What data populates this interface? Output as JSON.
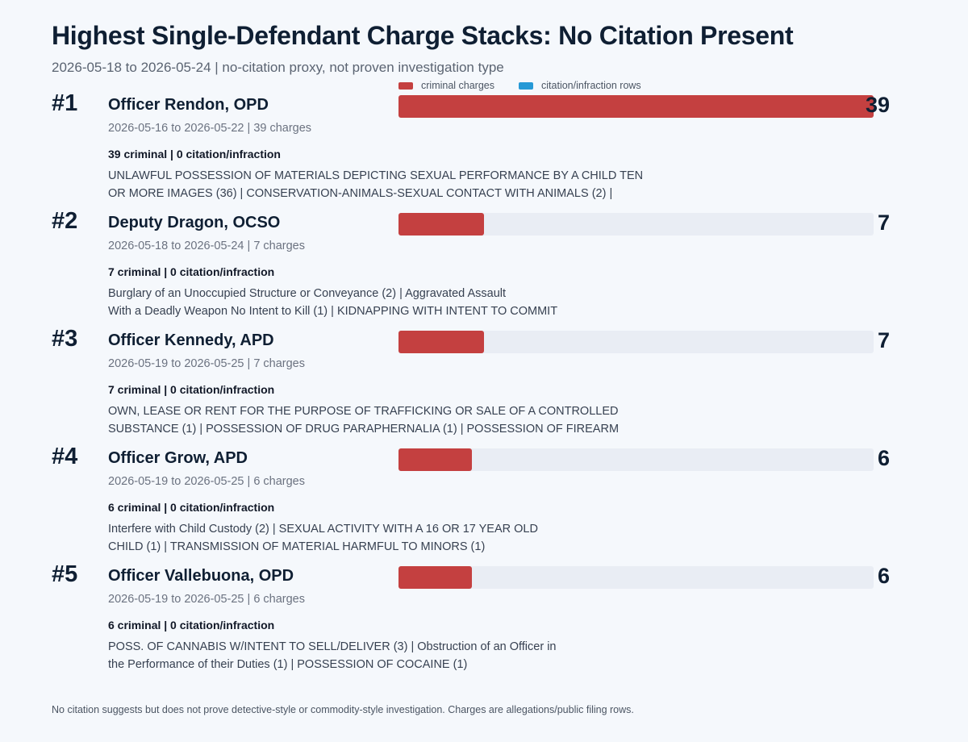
{
  "title": "Highest Single-Defendant Charge Stacks: No Citation Present",
  "subtitle": "2026-05-18 to 2026-05-24 | no-citation proxy, not proven investigation type",
  "legend": [
    {
      "label": "criminal charges",
      "color": "#c44040"
    },
    {
      "label": "citation/infraction rows",
      "color": "#2699d6"
    }
  ],
  "footnote": "No citation suggests but does not prove detective-style or commodity-style investigation. Charges are allegations/public filing rows.",
  "chart_data": {
    "type": "bar",
    "orientation": "horizontal",
    "stacked": true,
    "xlim": [
      0,
      39
    ],
    "categories": [
      "Officer Rendon, OPD",
      "Deputy Dragon, OCSO",
      "Officer Kennedy, APD",
      "Officer Grow, APD",
      "Officer Vallebuona, OPD"
    ],
    "series": [
      {
        "name": "criminal charges",
        "values": [
          39,
          7,
          7,
          6,
          6
        ]
      },
      {
        "name": "citation/infraction rows",
        "values": [
          0,
          0,
          0,
          0,
          0
        ]
      }
    ],
    "rows": [
      {
        "rank": "#1",
        "name": "Officer Rendon, OPD",
        "meta": "2026-05-16 to 2026-05-22 | 39 charges",
        "split": "39 criminal | 0 citation/infraction",
        "charges": [
          "UNLAWFUL POSSESSION OF MATERIALS DEPICTING SEXUAL PERFORMANCE BY A CHILD TEN",
          "OR MORE IMAGES (36) | CONSERVATION-ANIMALS-SEXUAL CONTACT WITH ANIMALS (2) |"
        ],
        "criminal": 39,
        "citation": 0,
        "total": "39"
      },
      {
        "rank": "#2",
        "name": "Deputy Dragon, OCSO",
        "meta": "2026-05-18 to 2026-05-24 | 7 charges",
        "split": "7 criminal | 0 citation/infraction",
        "charges": [
          "Burglary of an Unoccupied Structure or Conveyance (2) | Aggravated Assault",
          "With a Deadly Weapon No Intent to Kill (1) | KIDNAPPING WITH INTENT TO COMMIT"
        ],
        "criminal": 7,
        "citation": 0,
        "total": "7"
      },
      {
        "rank": "#3",
        "name": "Officer Kennedy, APD",
        "meta": "2026-05-19 to 2026-05-25 | 7 charges",
        "split": "7 criminal | 0 citation/infraction",
        "charges": [
          "OWN, LEASE OR RENT FOR THE PURPOSE OF TRAFFICKING OR SALE OF A CONTROLLED",
          "SUBSTANCE (1) | POSSESSION OF DRUG PARAPHERNALIA (1) | POSSESSION OF FIREARM"
        ],
        "criminal": 7,
        "citation": 0,
        "total": "7"
      },
      {
        "rank": "#4",
        "name": "Officer Grow, APD",
        "meta": "2026-05-19 to 2026-05-25 | 6 charges",
        "split": "6 criminal | 0 citation/infraction",
        "charges": [
          "Interfere with Child Custody (2) | SEXUAL ACTIVITY WITH A 16 OR 17 YEAR OLD",
          "CHILD (1) | TRANSMISSION OF MATERIAL HARMFUL TO MINORS (1)"
        ],
        "criminal": 6,
        "citation": 0,
        "total": "6"
      },
      {
        "rank": "#5",
        "name": "Officer Vallebuona, OPD",
        "meta": "2026-05-19 to 2026-05-25 | 6 charges",
        "split": "6 criminal | 0 citation/infraction",
        "charges": [
          "POSS. OF CANNABIS W/INTENT TO SELL/DELIVER (3) | Obstruction of an Officer in",
          "the Performance of their Duties (1) | POSSESSION OF COCAINE (1)"
        ],
        "criminal": 6,
        "citation": 0,
        "total": "6"
      }
    ]
  }
}
